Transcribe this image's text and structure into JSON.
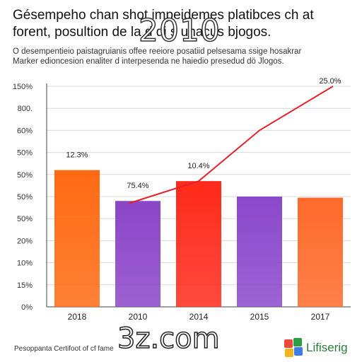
{
  "header": {
    "title_line1": "Gésempeho chan shot impeidemes platibces ch at",
    "title_line2": "forent, posultion de la d  di  s unacus bjogos.",
    "overlay_text": "2010",
    "subtitle_line1": "O desempentieio paistagruianis offee reeiore posatiid pelsesama ssige hosakrar",
    "subtitle_line2": "Marker edioncesion enaliter d interpesenda ne haiedio presedud dö Jlogos."
  },
  "overlay_bottom": "3z.com",
  "footer": {
    "text": "Pesoppanta Certifoot of cf fame"
  },
  "logo": {
    "text": "Lifiserig",
    "colors": [
      "#e84b3c",
      "#2e9e46",
      "#f2b51d",
      "#3c7be8"
    ]
  },
  "colors": {
    "bars": [
      "#ff6a12",
      "#8b45c8",
      "#ff2a1a",
      "#8a48cc",
      "#ff6a2a"
    ],
    "line": "#e5202a",
    "grid": "#d9d9d9",
    "axis": "#444444"
  },
  "chart_data": {
    "type": "bar",
    "categories": [
      "2018",
      "2010",
      "2014",
      "2015",
      "2017"
    ],
    "values": [
      620,
      480,
      570,
      500,
      495
    ],
    "bar_labels": [
      "12.3%",
      "75.4%",
      "10.4%",
      "",
      ""
    ],
    "ytick_labels": [
      "0%",
      "15%",
      "10%",
      "20%",
      "50%",
      "50%",
      "50%",
      "50%",
      "60%",
      "800.",
      "150%"
    ],
    "ylim": [
      0,
      1000
    ],
    "line": {
      "x_index": [
        1,
        2,
        3,
        4
      ],
      "values": [
        470,
        570,
        800,
        1000
      ],
      "end_label": "25.0%"
    },
    "grid": true
  }
}
